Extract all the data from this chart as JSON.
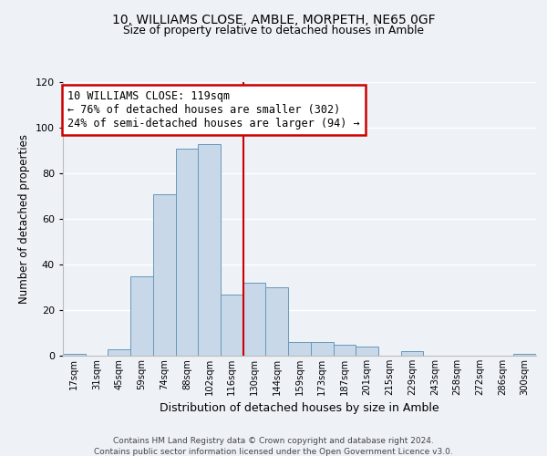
{
  "title": "10, WILLIAMS CLOSE, AMBLE, MORPETH, NE65 0GF",
  "subtitle": "Size of property relative to detached houses in Amble",
  "xlabel": "Distribution of detached houses by size in Amble",
  "ylabel": "Number of detached properties",
  "bin_labels": [
    "17sqm",
    "31sqm",
    "45sqm",
    "59sqm",
    "74sqm",
    "88sqm",
    "102sqm",
    "116sqm",
    "130sqm",
    "144sqm",
    "159sqm",
    "173sqm",
    "187sqm",
    "201sqm",
    "215sqm",
    "229sqm",
    "243sqm",
    "258sqm",
    "272sqm",
    "286sqm",
    "300sqm"
  ],
  "bar_values": [
    1,
    0,
    3,
    35,
    71,
    91,
    93,
    27,
    32,
    30,
    6,
    6,
    5,
    4,
    0,
    2,
    0,
    0,
    0,
    0,
    1
  ],
  "bar_color": "#c8d8e8",
  "bar_edge_color": "#6699bb",
  "annotation_title": "10 WILLIAMS CLOSE: 119sqm",
  "annotation_line1": "← 76% of detached houses are smaller (302)",
  "annotation_line2": "24% of semi-detached houses are larger (94) →",
  "annotation_box_color": "#ffffff",
  "annotation_box_edge": "#cc0000",
  "vline_color": "#cc0000",
  "footer1": "Contains HM Land Registry data © Crown copyright and database right 2024.",
  "footer2": "Contains public sector information licensed under the Open Government Licence v3.0.",
  "background_color": "#eef2f7",
  "grid_color": "#ffffff",
  "ylim": [
    0,
    120
  ],
  "yticks": [
    0,
    20,
    40,
    60,
    80,
    100,
    120
  ],
  "vline_x": 7.5
}
